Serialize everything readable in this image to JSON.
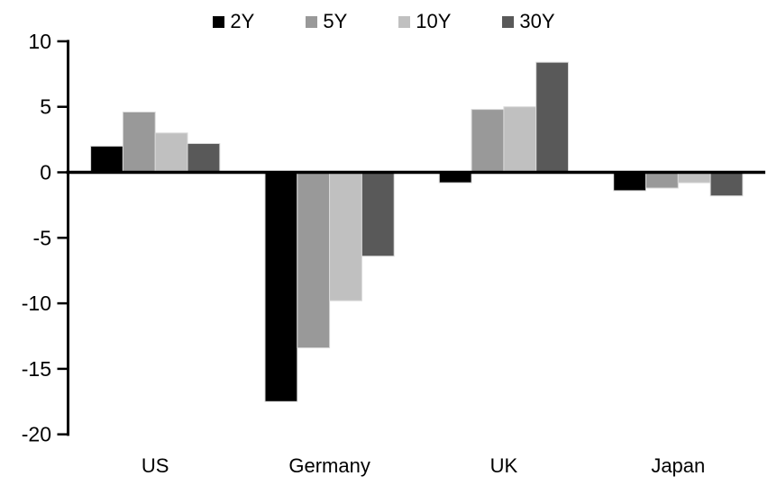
{
  "chart_data": {
    "type": "bar",
    "title": "",
    "xlabel": "",
    "ylabel": "",
    "categories": [
      "US",
      "Germany",
      "UK",
      "Japan"
    ],
    "series": [
      {
        "name": "2Y",
        "color": "#000000",
        "values": [
          2.0,
          -17.5,
          -0.8,
          -1.4
        ]
      },
      {
        "name": "5Y",
        "color": "#999999",
        "values": [
          4.6,
          -13.4,
          4.8,
          -1.2
        ]
      },
      {
        "name": "10Y",
        "color": "#c0c0c0",
        "values": [
          3.0,
          -9.8,
          5.0,
          -0.8
        ]
      },
      {
        "name": "30Y",
        "color": "#595959",
        "values": [
          2.2,
          -6.4,
          8.4,
          -1.8
        ]
      }
    ],
    "ylim": [
      -20,
      10
    ],
    "yticks": [
      10,
      5,
      0,
      -5,
      -10,
      -15,
      -20
    ],
    "ytick_labels": [
      "10",
      "5",
      "0",
      "-5",
      "-10",
      "-15",
      "-20"
    ],
    "grid": false,
    "legend_position": "top",
    "colors": {
      "axis": "#000000",
      "bar_outline": "#d9d9d9",
      "background": "#ffffff",
      "text": "#000000"
    }
  }
}
